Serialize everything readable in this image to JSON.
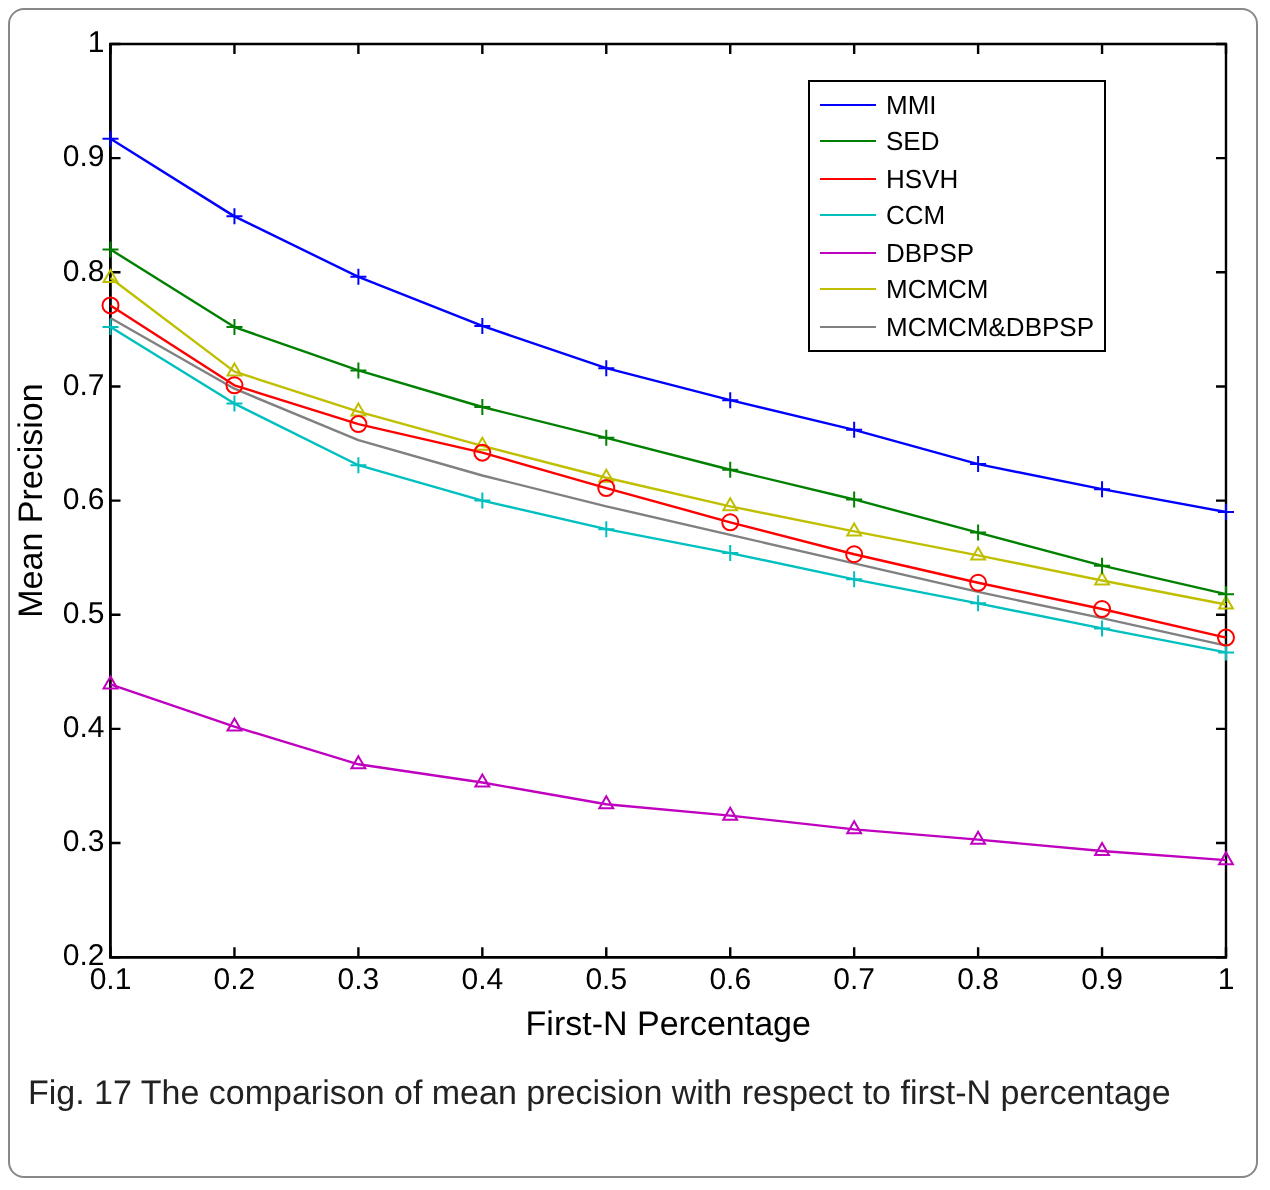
{
  "chart_data": {
    "type": "line",
    "xlabel": "First-N Percentage",
    "ylabel": "Mean Precision",
    "annotations": [
      "Fig. 17 The comparison of mean precision with respect to first-N percentage"
    ],
    "x": [
      0.1,
      0.2,
      0.3,
      0.4,
      0.5,
      0.6,
      0.7,
      0.8,
      0.9,
      1
    ],
    "xlim": [
      0.1,
      1
    ],
    "xticks": [
      0.1,
      0.2,
      0.3,
      0.4,
      0.5,
      0.6,
      0.7,
      0.8,
      0.9,
      1
    ],
    "ylim": [
      0.2,
      1
    ],
    "yticks": [
      0.2,
      0.3,
      0.4,
      0.5,
      0.6,
      0.7,
      0.8,
      0.9,
      1
    ],
    "legend": "top right",
    "series": [
      {
        "name": "MMI",
        "color": "#0000ff",
        "marker": "cross",
        "values": [
          0.917,
          0.849,
          0.796,
          0.753,
          0.716,
          0.688,
          0.662,
          0.632,
          0.61,
          0.59
        ]
      },
      {
        "name": "SED",
        "color": "#008000",
        "marker": "cross",
        "values": [
          0.82,
          0.752,
          0.714,
          0.682,
          0.655,
          0.627,
          0.601,
          0.572,
          0.543,
          0.518
        ]
      },
      {
        "name": "HSVH",
        "color": "#ff0000",
        "marker": "circle",
        "values": [
          0.771,
          0.701,
          0.667,
          0.642,
          0.611,
          0.581,
          0.553,
          0.528,
          0.505,
          0.48
        ]
      },
      {
        "name": "CCM",
        "color": "#00bfbf",
        "marker": "cross",
        "values": [
          0.752,
          0.685,
          0.631,
          0.6,
          0.575,
          0.554,
          0.531,
          0.51,
          0.488,
          0.467
        ]
      },
      {
        "name": "DBPSP",
        "color": "#bf00bf",
        "marker": "triangle",
        "values": [
          0.439,
          0.402,
          0.369,
          0.353,
          0.334,
          0.324,
          0.312,
          0.303,
          0.293,
          0.285
        ]
      },
      {
        "name": "MCMCM",
        "color": "#bfbf00",
        "marker": "triangle",
        "values": [
          0.795,
          0.713,
          0.678,
          0.648,
          0.62,
          0.595,
          0.573,
          0.552,
          0.53,
          0.509
        ]
      },
      {
        "name": "MCMCM&DBPSP",
        "color": "#808080",
        "marker": "none",
        "values": [
          0.76,
          0.698,
          0.653,
          0.622,
          0.595,
          0.57,
          0.545,
          0.52,
          0.497,
          0.473
        ]
      }
    ]
  }
}
